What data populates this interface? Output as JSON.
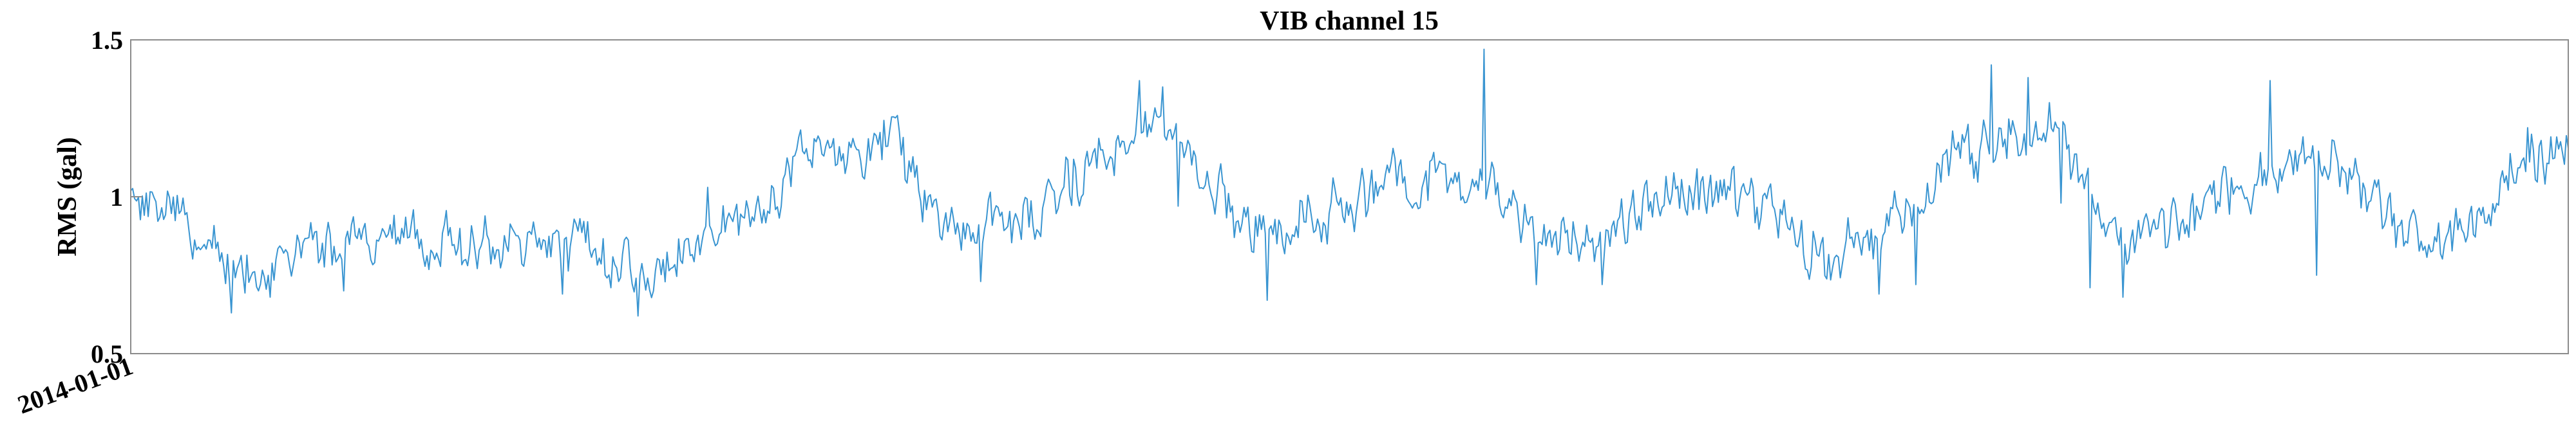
{
  "chart_data": {
    "type": "line",
    "title": "VIB channel 15",
    "ylabel": "RMS (gal)",
    "xlabel": "",
    "x_tick_labels": [
      "2014-01-01"
    ],
    "y_ticks": [
      0.5,
      1,
      1.5
    ],
    "y_tick_labels": [
      "0.5",
      "1",
      "1.5"
    ],
    "ylim": [
      0.5,
      1.5
    ],
    "grid": false,
    "x_start": "2014-01-01",
    "series": [
      {
        "name": "",
        "color": "#3a95d1",
        "profile": [
          [
            0.0,
            1.0
          ],
          [
            0.02,
            0.96
          ],
          [
            0.045,
            0.73
          ],
          [
            0.08,
            0.85
          ],
          [
            0.11,
            0.87
          ],
          [
            0.14,
            0.85
          ],
          [
            0.17,
            0.86
          ],
          [
            0.185,
            0.84
          ],
          [
            0.215,
            0.74
          ],
          [
            0.24,
            0.9
          ],
          [
            0.26,
            0.98
          ],
          [
            0.275,
            1.13
          ],
          [
            0.3,
            1.16
          ],
          [
            0.315,
            1.2
          ],
          [
            0.325,
            0.97
          ],
          [
            0.345,
            0.87
          ],
          [
            0.37,
            0.95
          ],
          [
            0.39,
            1.08
          ],
          [
            0.41,
            1.18
          ],
          [
            0.425,
            1.22
          ],
          [
            0.44,
            1.12
          ],
          [
            0.46,
            0.88
          ],
          [
            0.48,
            0.92
          ],
          [
            0.5,
            0.98
          ],
          [
            0.52,
            1.05
          ],
          [
            0.54,
            1.09
          ],
          [
            0.56,
            1.04
          ],
          [
            0.575,
            0.88
          ],
          [
            0.6,
            0.84
          ],
          [
            0.62,
            0.99
          ],
          [
            0.645,
            1.02
          ],
          [
            0.665,
            1.01
          ],
          [
            0.68,
            0.92
          ],
          [
            0.695,
            0.8
          ],
          [
            0.715,
            0.88
          ],
          [
            0.735,
            0.98
          ],
          [
            0.75,
            1.14
          ],
          [
            0.775,
            1.2
          ],
          [
            0.79,
            1.22
          ],
          [
            0.8,
            1.1
          ],
          [
            0.815,
            0.86
          ],
          [
            0.835,
            0.91
          ],
          [
            0.855,
            0.98
          ],
          [
            0.875,
            1.08
          ],
          [
            0.895,
            1.13
          ],
          [
            0.91,
            1.1
          ],
          [
            0.93,
            0.88
          ],
          [
            0.945,
            0.85
          ],
          [
            0.96,
            0.92
          ],
          [
            0.98,
            1.1
          ],
          [
            1.0,
            1.13
          ]
        ],
        "noise_amplitude": 0.1,
        "spikes": [
          [
            0.041,
            0.63
          ],
          [
            0.057,
            0.68
          ],
          [
            0.087,
            0.7
          ],
          [
            0.177,
            0.69
          ],
          [
            0.208,
            0.62
          ],
          [
            0.237,
            1.03
          ],
          [
            0.325,
            0.92
          ],
          [
            0.349,
            0.73
          ],
          [
            0.414,
            1.37
          ],
          [
            0.423,
            1.35
          ],
          [
            0.43,
            0.97
          ],
          [
            0.453,
            0.87
          ],
          [
            0.466,
            0.67
          ],
          [
            0.555,
            1.47
          ],
          [
            0.577,
            0.72
          ],
          [
            0.604,
            0.72
          ],
          [
            0.717,
            0.69
          ],
          [
            0.732,
            0.72
          ],
          [
            0.763,
            1.42
          ],
          [
            0.778,
            1.38
          ],
          [
            0.787,
            1.3
          ],
          [
            0.792,
            0.98
          ],
          [
            0.804,
            0.71
          ],
          [
            0.817,
            0.68
          ],
          [
            0.878,
            1.37
          ],
          [
            0.897,
            0.75
          ],
          [
            0.961,
            0.88
          ],
          [
            0.983,
            1.22
          ]
        ],
        "seed": 15
      }
    ]
  }
}
